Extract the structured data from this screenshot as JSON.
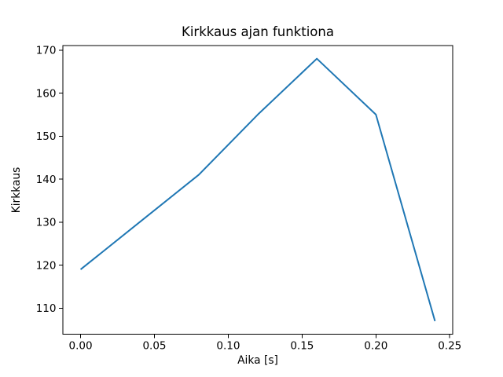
{
  "chart_data": {
    "type": "line",
    "title": "Kirkkaus ajan funktiona",
    "xlabel": "Aika [s]",
    "ylabel": "Kirkkaus",
    "x": [
      0.0,
      0.04,
      0.08,
      0.12,
      0.16,
      0.2,
      0.24
    ],
    "y": [
      119,
      130,
      141,
      155,
      168,
      155,
      107
    ],
    "x_tick_values": [
      0.0,
      0.05,
      0.1,
      0.15,
      0.2,
      0.25
    ],
    "x_tick_labels": [
      "0.00",
      "0.05",
      "0.10",
      "0.15",
      "0.20",
      "0.25"
    ],
    "y_tick_values": [
      110,
      120,
      130,
      140,
      150,
      160,
      170
    ],
    "y_tick_labels": [
      "110",
      "120",
      "130",
      "140",
      "150",
      "160",
      "170"
    ],
    "xlim": [
      -0.012,
      0.252
    ],
    "ylim": [
      103.95,
      171.05
    ],
    "grid": false,
    "legend": null,
    "line_color": "#1f77b4",
    "spine_color": "#000000",
    "background_color": "#ffffff",
    "text_color": "#000000"
  }
}
